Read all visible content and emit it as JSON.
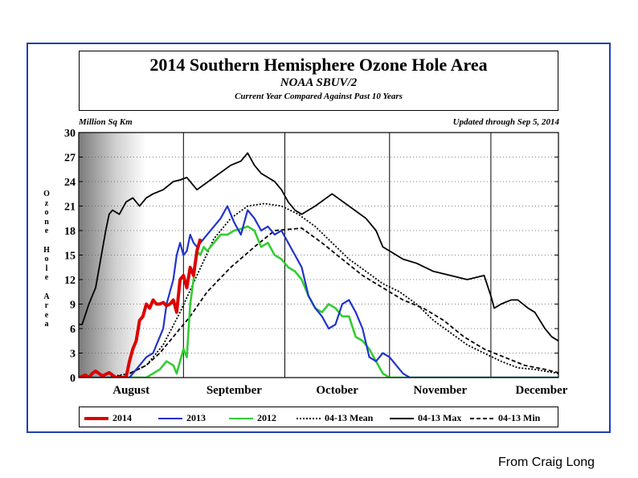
{
  "title": "2014 Southern Hemisphere Ozone Hole Area",
  "subtitle": "NOAA SBUV/2",
  "subtitle2": "Current Year Compared Against Past 10 Years",
  "source": "From  Craig Long",
  "chart_data": {
    "type": "line",
    "unit_label": "Million Sq Km",
    "updated": "Updated through Sep 5, 2014",
    "ylabel": "Ozone Hole Area",
    "ylim": [
      0,
      30
    ],
    "yticks": [
      0,
      3,
      6,
      9,
      12,
      15,
      18,
      21,
      24,
      27,
      30
    ],
    "xlim": [
      0,
      142
    ],
    "xticks": [
      {
        "label": "August",
        "x": 0
      },
      {
        "label": "September",
        "x": 31
      },
      {
        "label": "October",
        "x": 61
      },
      {
        "label": "November",
        "x": 92
      },
      {
        "label": "December",
        "x": 122
      }
    ],
    "month_lines": [
      31,
      61,
      92,
      122
    ],
    "grid": "dotted horizontal",
    "series": [
      {
        "name": "04-13 Min",
        "color": "#000000",
        "dash": "5,3",
        "x": [
          0,
          5,
          10,
          15,
          20,
          24,
          28,
          33,
          38,
          45,
          52,
          58,
          66,
          72,
          78,
          84,
          90,
          96,
          102,
          108,
          114,
          120,
          126,
          132,
          138,
          142
        ],
        "y": [
          0,
          0,
          0,
          0.5,
          1.5,
          3,
          5,
          7.5,
          10.5,
          13.5,
          16,
          18,
          18.3,
          16.5,
          14.5,
          12.5,
          11,
          9.5,
          8.5,
          7,
          5,
          3.5,
          2.5,
          1.5,
          1,
          0.6
        ]
      },
      {
        "name": "04-13 Mean",
        "color": "#000000",
        "dash": "2,2",
        "x": [
          0,
          8,
          15,
          20,
          25,
          30,
          35,
          40,
          45,
          50,
          55,
          60,
          65,
          70,
          75,
          80,
          85,
          90,
          95,
          100,
          105,
          110,
          115,
          120,
          125,
          130,
          135,
          142
        ],
        "y": [
          0,
          0,
          0.5,
          1.5,
          4,
          8,
          12.5,
          17,
          19.5,
          21,
          21.3,
          21,
          20,
          18.5,
          16.5,
          14.5,
          13,
          11.5,
          10.5,
          9,
          7,
          5.5,
          4,
          3,
          2,
          1.2,
          1,
          0.5
        ]
      },
      {
        "name": "04-13 Max",
        "color": "#000000",
        "dash": "",
        "x": [
          0,
          1,
          3,
          5,
          8,
          9,
          10,
          12,
          14,
          16,
          18,
          20,
          22,
          25,
          28,
          30,
          32,
          35,
          40,
          45,
          48,
          50,
          52,
          54,
          56,
          58,
          60,
          62,
          64,
          66,
          70,
          75,
          80,
          85,
          88,
          90,
          92,
          96,
          100,
          105,
          110,
          115,
          120,
          122,
          123,
          125,
          128,
          130,
          133,
          135,
          138,
          140,
          142
        ],
        "y": [
          6.5,
          6.5,
          9,
          11,
          18,
          20,
          20.5,
          20,
          21.5,
          22,
          21,
          22,
          22.5,
          23,
          24,
          24.2,
          24.5,
          23,
          24.5,
          26,
          26.5,
          27.5,
          26,
          25,
          24.5,
          24,
          23,
          21.5,
          20.5,
          20,
          21,
          22.5,
          21,
          19.5,
          18,
          16,
          15.5,
          14.5,
          14,
          13,
          12.5,
          12,
          12.5,
          10,
          8.5,
          9,
          9.5,
          9.5,
          8.5,
          8,
          6,
          5,
          4.5
        ]
      },
      {
        "name": "2012",
        "color": "#33cc33",
        "dash": "",
        "x": [
          0,
          20,
          22,
          24,
          26,
          28,
          29,
          30,
          31,
          32,
          33,
          34,
          35,
          36,
          37,
          38,
          40,
          42,
          44,
          46,
          48,
          50,
          52,
          54,
          56,
          58,
          60,
          62,
          64,
          66,
          68,
          70,
          72,
          74,
          76,
          78,
          80,
          82,
          84,
          86,
          88,
          90,
          92,
          94,
          96,
          98,
          100,
          110,
          120,
          130,
          142
        ],
        "y": [
          0,
          0,
          0.5,
          1,
          2,
          1.5,
          0.5,
          2,
          3.5,
          2.5,
          9,
          12,
          15.5,
          15,
          16,
          15.5,
          16.5,
          17.5,
          17.5,
          18,
          18.2,
          18.5,
          18,
          16,
          16.5,
          15,
          14.5,
          13.5,
          13,
          12,
          10,
          8.5,
          8,
          9,
          8.5,
          7.5,
          7.5,
          5,
          4.5,
          3.5,
          2,
          0.5,
          0,
          0,
          0,
          0,
          0,
          0,
          0,
          0,
          0
        ]
      },
      {
        "name": "2013",
        "color": "#2233cc",
        "dash": "",
        "x": [
          0,
          15,
          16,
          18,
          20,
          22,
          24,
          25,
          26,
          28,
          29,
          30,
          31,
          32,
          33,
          34,
          35,
          36,
          37,
          38,
          40,
          42,
          44,
          45,
          46,
          48,
          50,
          52,
          54,
          56,
          58,
          60,
          62,
          64,
          66,
          68,
          70,
          72,
          74,
          76,
          78,
          80,
          82,
          84,
          86,
          88,
          90,
          92,
          94,
          96,
          98,
          100,
          142
        ],
        "y": [
          0,
          0,
          0.5,
          1.5,
          2.5,
          3,
          5,
          6,
          9,
          12,
          15,
          16.5,
          15,
          15.5,
          17.5,
          16.5,
          16,
          16.5,
          17,
          17.5,
          18.5,
          19.5,
          21,
          20,
          19,
          17.5,
          20.5,
          19.5,
          18,
          18.5,
          17.5,
          18,
          16.5,
          15,
          13.5,
          10,
          8.5,
          7.5,
          6,
          6.5,
          9,
          9.5,
          8,
          6,
          2.5,
          2,
          3,
          2.5,
          1.5,
          0.5,
          0,
          0,
          0
        ]
      },
      {
        "name": "2014",
        "color": "#dd0000",
        "dash": "",
        "x": [
          0,
          2,
          3,
          4,
          5,
          7,
          9,
          11,
          13,
          14,
          15,
          16,
          17,
          18,
          19,
          20,
          21,
          22,
          23,
          24,
          25,
          26,
          27,
          28,
          29,
          30,
          31,
          32,
          33,
          34,
          35,
          36
        ],
        "y": [
          0,
          0.3,
          0,
          0.5,
          0.8,
          0.2,
          0.6,
          0,
          0,
          0,
          2,
          3.5,
          4.5,
          7,
          7.5,
          9,
          8.5,
          9.5,
          9,
          9,
          9.2,
          8.8,
          9,
          9.5,
          8,
          12,
          12.5,
          11,
          13.5,
          12.5,
          15.5,
          17
        ]
      }
    ],
    "legend": {
      "placement": "bottom",
      "order": [
        "2014",
        "2013",
        "2012",
        "04-13 Mean",
        "04-13 Max",
        "04-13 Min"
      ]
    }
  }
}
